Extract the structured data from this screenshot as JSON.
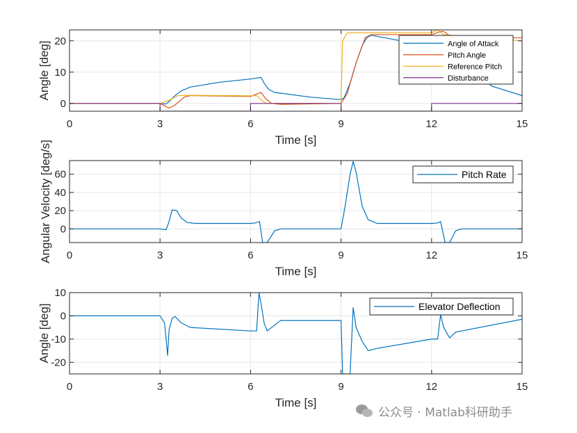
{
  "watermark": {
    "text": "公众号 · Matlab科研助手",
    "icon": "wechat-bubbles-icon"
  },
  "chart_data": [
    {
      "type": "line",
      "xlabel": "Time [s]",
      "ylabel": "Angle [deg]",
      "xlim": [
        0,
        15
      ],
      "ylim": [
        -2.5,
        23.5
      ],
      "xticks": [
        0,
        3,
        6,
        9,
        12,
        15
      ],
      "yticks": [
        0,
        10,
        20
      ],
      "grid": true,
      "legend_position": "top-right",
      "series": [
        {
          "name": "Angle of Attack",
          "color": "#0072BD",
          "x": [
            0,
            3.0,
            3.2,
            3.3,
            3.5,
            3.7,
            4.0,
            5.0,
            6.0,
            6.2,
            6.35,
            6.45,
            6.6,
            6.8,
            8.0,
            9.0,
            9.1,
            9.3,
            9.5,
            9.7,
            9.85,
            10.0,
            11.0,
            12.0,
            12.3,
            12.4,
            13.0,
            14.0,
            15.0
          ],
          "y": [
            0,
            0,
            -0.2,
            0.6,
            2.5,
            4.0,
            5.2,
            6.8,
            7.8,
            8.1,
            8.3,
            6.5,
            4.5,
            3.5,
            2.0,
            1.2,
            1.8,
            6.5,
            13.0,
            18.5,
            21.0,
            21.8,
            20.0,
            19.0,
            19.8,
            19.0,
            14.0,
            5.5,
            2.5
          ]
        },
        {
          "name": "Pitch Angle",
          "color": "#D95319",
          "x": [
            0,
            3.0,
            3.3,
            3.5,
            3.8,
            4.0,
            6.0,
            6.2,
            6.35,
            6.5,
            6.7,
            7.0,
            9.0,
            9.2,
            9.5,
            9.8,
            10.0,
            12.0,
            12.3,
            12.4,
            12.7,
            15.0
          ],
          "y": [
            0,
            0,
            -1.5,
            -0.5,
            2.0,
            2.5,
            2.2,
            3.0,
            3.5,
            1.5,
            0.0,
            -0.3,
            0.0,
            3.0,
            13.0,
            21.0,
            22.0,
            22.0,
            23.0,
            23.0,
            21.0,
            21.0
          ]
        },
        {
          "name": "Reference Pitch",
          "color": "#EDB120",
          "x": [
            0,
            3.0,
            3.3,
            3.6,
            4.0,
            6.0,
            6.2,
            6.35,
            6.5,
            7.0,
            9.0,
            9.05,
            9.2,
            9.5,
            12.0,
            12.2,
            12.4,
            15.0
          ],
          "y": [
            0,
            0,
            1.0,
            2.5,
            2.6,
            2.4,
            2.5,
            1.2,
            0.0,
            0.0,
            0.0,
            20.0,
            22.5,
            22.6,
            22.6,
            23.5,
            22.0,
            20.0
          ]
        },
        {
          "name": "Disturbance",
          "color": "#7E2F8E",
          "x": [
            0,
            3.0,
            3.0,
            6.0,
            6.0,
            9.0,
            9.0,
            12.0,
            12.0,
            15.0
          ],
          "y": [
            0,
            0,
            -2.5,
            -2.5,
            0,
            0,
            -2.5,
            -2.5,
            0,
            0
          ]
        }
      ]
    },
    {
      "type": "line",
      "xlabel": "Time [s]",
      "ylabel": "Angular Velocity [deg/s]",
      "xlim": [
        0,
        15
      ],
      "ylim": [
        -15,
        75
      ],
      "xticks": [
        0,
        3,
        6,
        9,
        12,
        15
      ],
      "yticks": [
        0,
        20,
        40,
        60
      ],
      "grid": true,
      "legend_position": "top-right",
      "series": [
        {
          "name": "Pitch Rate",
          "color": "#0072BD",
          "x": [
            0,
            3.0,
            3.2,
            3.3,
            3.4,
            3.55,
            3.7,
            3.9,
            4.2,
            6.0,
            6.15,
            6.3,
            6.4,
            6.55,
            6.8,
            7.0,
            9.0,
            9.15,
            9.3,
            9.4,
            9.5,
            9.7,
            9.9,
            10.2,
            12.0,
            12.2,
            12.3,
            12.45,
            12.6,
            12.8,
            13.0,
            15.0
          ],
          "y": [
            0,
            0,
            -1.0,
            8.0,
            21.0,
            20.0,
            12.0,
            7.0,
            6.0,
            6.0,
            6.5,
            8.0,
            -15.0,
            -15.0,
            -2.0,
            0,
            0,
            28.0,
            60.0,
            74.0,
            62.0,
            25.0,
            10.0,
            6.0,
            6.0,
            6.5,
            8.0,
            -15.0,
            -15.0,
            -2.0,
            0,
            0
          ]
        }
      ]
    },
    {
      "type": "line",
      "xlabel": "Time [s]",
      "ylabel": "Angle [deg]",
      "xlim": [
        0,
        15
      ],
      "ylim": [
        -25,
        10
      ],
      "xticks": [
        0,
        3,
        6,
        9,
        12,
        15
      ],
      "yticks": [
        -20,
        -10,
        0,
        10
      ],
      "grid": true,
      "legend_position": "top-right",
      "series": [
        {
          "name": "Elevator Deflection",
          "color": "#0072BD",
          "x": [
            0,
            3.0,
            3.15,
            3.25,
            3.3,
            3.4,
            3.5,
            3.7,
            4.0,
            6.0,
            6.2,
            6.28,
            6.35,
            6.45,
            6.55,
            6.8,
            7.0,
            9.0,
            9.05,
            9.1,
            9.3,
            9.4,
            9.5,
            9.7,
            9.9,
            10.2,
            12.0,
            12.2,
            12.3,
            12.4,
            12.6,
            12.8,
            15.0
          ],
          "y": [
            0,
            0,
            -3.0,
            -17.0,
            -6.0,
            -1.0,
            -0.3,
            -3.0,
            -5.0,
            -6.5,
            -6.5,
            10.0,
            5.0,
            -3.0,
            -6.5,
            -4.0,
            -2.0,
            -2.0,
            -25.0,
            -25.0,
            -25.0,
            3.5,
            -5.0,
            -11.0,
            -15.0,
            -14.0,
            -10.0,
            -10.0,
            0.5,
            -5.0,
            -9.5,
            -7.0,
            -1.5
          ]
        }
      ]
    }
  ]
}
